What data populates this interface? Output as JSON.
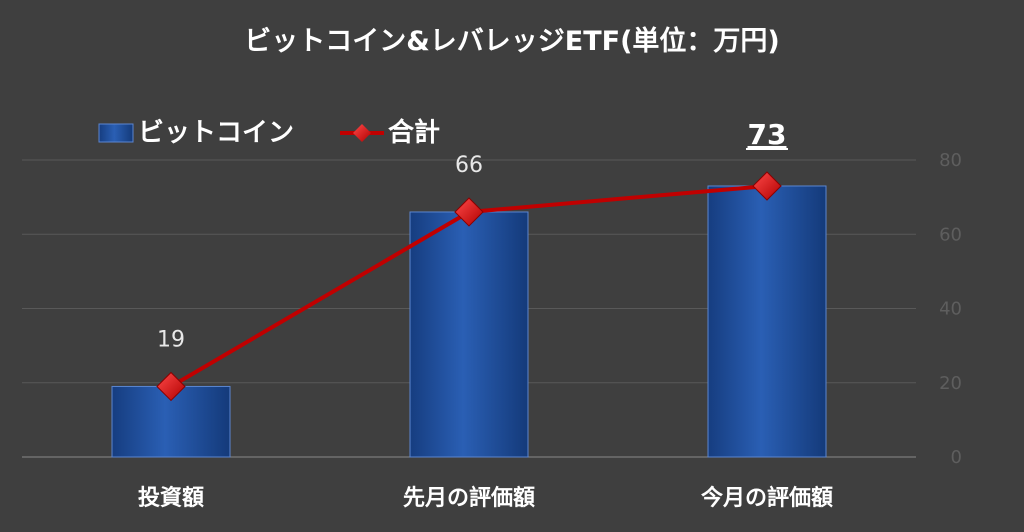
{
  "chart_data": {
    "type": "bar",
    "title": "ビットコイン&レバレッジETF(単位：万円)",
    "categories": [
      "投資額",
      "先月の評価額",
      "今月の評価額"
    ],
    "series": [
      {
        "name": "ビットコイン",
        "type": "bar",
        "values": [
          19,
          66,
          73
        ],
        "color": "#1f4e9b"
      },
      {
        "name": "合計",
        "type": "line",
        "values": [
          19,
          66,
          73
        ],
        "color": "#c00000"
      }
    ],
    "data_labels": [
      "19",
      "66",
      "73"
    ],
    "emphasized_label": "73",
    "y_axis": {
      "side": "right",
      "ticks": [
        "0",
        "20",
        "40",
        "60",
        "80"
      ],
      "ylim": [
        0,
        80
      ]
    },
    "grid": true,
    "legend": "top-left",
    "xlabel": "",
    "ylabel": ""
  }
}
